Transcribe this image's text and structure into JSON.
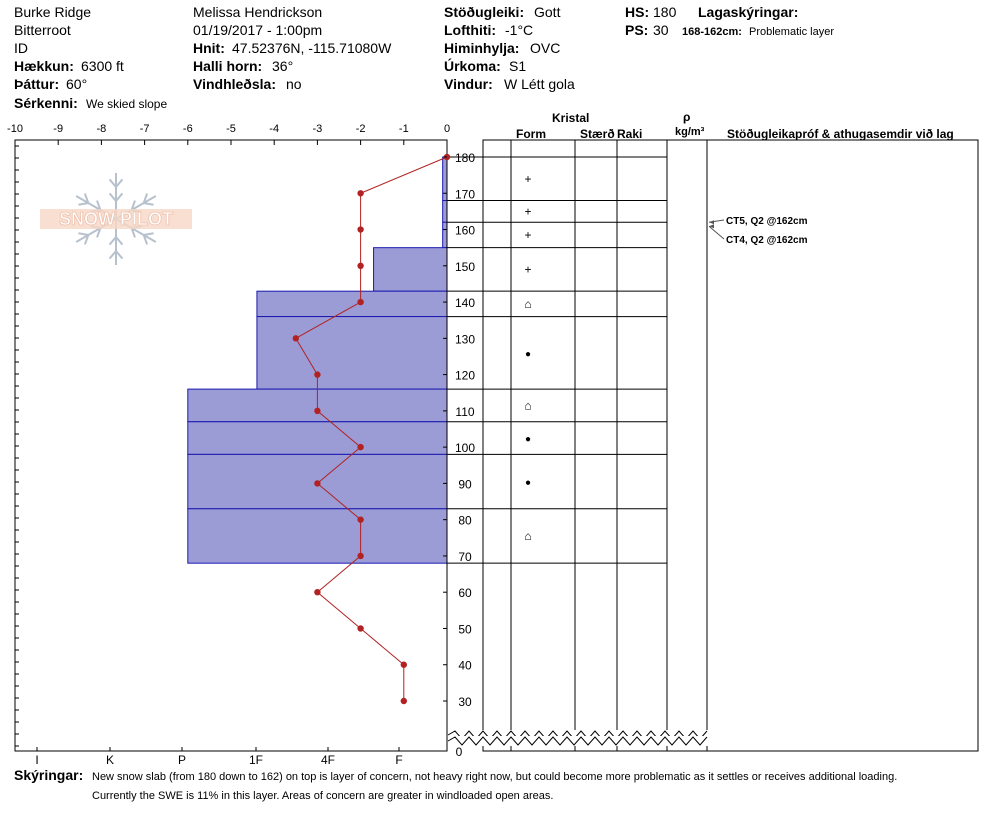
{
  "header": {
    "location": "Burke Ridge",
    "range": "Bitterroot",
    "state": "ID",
    "elevation_label": "Hækkun:",
    "elevation_value": "6300 ft",
    "aspect_label": "Þáttur:",
    "aspect_value": "60°",
    "feature_label": "Sérkenni:",
    "feature_value": "We skied slope",
    "observer": "Melissa Hendrickson",
    "datetime": "01/19/2017 - 1:00pm",
    "coord_label": "Hnit:",
    "coord_value": "47.52376N, -115.71080W",
    "slope_label": "Halli horn:",
    "slope_value": "36°",
    "wind_loading_label": "Vindhleðsla:",
    "wind_loading_value": "no",
    "stability_label": "Stöðugleiki:",
    "stability_value": "Gott",
    "air_temp_label": "Lofthiti:",
    "air_temp_value": "-1°C",
    "sky_label": "Himinhylja:",
    "sky_value": "OVC",
    "precip_label": "Úrkoma:",
    "precip_value": "S1",
    "wind_label": "Vindur:",
    "wind_value": "W Létt gola",
    "hs_label": "HS:",
    "hs_value": "180",
    "ps_label": "PS:",
    "ps_value": "30",
    "layer_notes_label": "Lagaskýringar:",
    "layer_notes_range": "168-162cm:",
    "layer_notes_value": "Problematic layer"
  },
  "columns": {
    "crystal": "Kristal",
    "form": "Form",
    "size": "Stærð",
    "moisture": "Raki",
    "rho": "ρ",
    "density_unit": "kg/m³",
    "tests": "Stöðugleikapróf & athugasemdir við lag"
  },
  "comments": {
    "label": "Skýringar:",
    "line1": "New snow slab (from 180 down to 162) on top is layer of concern, not heavy right now, but could become more problematic as it settles or receives additional loading.",
    "line2": "Currently the SWE is 11% in this layer.   Areas of concern are greater in windloaded open areas."
  },
  "logo": {
    "text": "SNOW PILOT"
  },
  "colors": {
    "hardness_fill": "#9b9bd6",
    "hardness_line": "#1a1ab0",
    "temp_line": "#b22222"
  },
  "chart_data": {
    "type": "area",
    "temp_axis": {
      "ticks": [
        "-10",
        "-9",
        "-8",
        "-7",
        "-6",
        "-5",
        "-4",
        "-3",
        "-2",
        "-1",
        "0"
      ],
      "range": [
        -10,
        0
      ]
    },
    "hardness_axis": {
      "labels": [
        "I",
        "K",
        "P",
        "1F",
        "4F",
        "F"
      ]
    },
    "height_axis": {
      "ticks": [
        "180",
        "170",
        "160",
        "150",
        "140",
        "130",
        "120",
        "110",
        "100",
        "90",
        "80",
        "70",
        "60",
        "50",
        "40",
        "30"
      ],
      "base_label": "0",
      "range": [
        0,
        180
      ]
    },
    "layers": [
      {
        "top": 180,
        "bottom": 168,
        "hardness": "F"
      },
      {
        "top": 168,
        "bottom": 162,
        "hardness": "F"
      },
      {
        "top": 162,
        "bottom": 155,
        "hardness": "F"
      },
      {
        "top": 155,
        "bottom": 143,
        "hardness": "4F"
      },
      {
        "top": 143,
        "bottom": 136,
        "hardness": "1F"
      },
      {
        "top": 136,
        "bottom": 116,
        "hardness": "1F"
      },
      {
        "top": 116,
        "bottom": 107,
        "hardness": "P"
      },
      {
        "top": 107,
        "bottom": 98,
        "hardness": "P"
      },
      {
        "top": 98,
        "bottom": 83,
        "hardness": "P"
      },
      {
        "top": 83,
        "bottom": 68,
        "hardness": "P"
      }
    ],
    "hardness_scale": {
      "F": 0.1,
      "4F": 1.7,
      "1F": 4.4,
      "P": 6.0
    },
    "temperature_profile": [
      {
        "height": 180,
        "temp": 0
      },
      {
        "height": 170,
        "temp": -2
      },
      {
        "height": 160,
        "temp": -2
      },
      {
        "height": 150,
        "temp": -2
      },
      {
        "height": 140,
        "temp": -2
      },
      {
        "height": 130,
        "temp": -3.5
      },
      {
        "height": 120,
        "temp": -3
      },
      {
        "height": 110,
        "temp": -3
      },
      {
        "height": 100,
        "temp": -2
      },
      {
        "height": 90,
        "temp": -3
      },
      {
        "height": 80,
        "temp": -2
      },
      {
        "height": 70,
        "temp": -2
      },
      {
        "height": 60,
        "temp": -3
      },
      {
        "height": 50,
        "temp": -2
      },
      {
        "height": 40,
        "temp": -1
      },
      {
        "height": 30,
        "temp": -1
      }
    ],
    "crystal_forms": [
      {
        "height": 174,
        "symbol": "+"
      },
      {
        "height": 165,
        "symbol": "+"
      },
      {
        "height": 158.5,
        "symbol": "+"
      },
      {
        "height": 149,
        "symbol": "+"
      },
      {
        "height": 139.5,
        "symbol": "⌂"
      },
      {
        "height": 126,
        "symbol": "●"
      },
      {
        "height": 111.5,
        "symbol": "⌂"
      },
      {
        "height": 102.5,
        "symbol": "●"
      },
      {
        "height": 90.5,
        "symbol": "●"
      },
      {
        "height": 75.5,
        "symbol": "⌂"
      }
    ],
    "stability_tests": [
      {
        "label": "CT5, Q2 @162cm",
        "height": 162
      },
      {
        "label": "CT4, Q2 @162cm",
        "height": 162
      }
    ]
  }
}
